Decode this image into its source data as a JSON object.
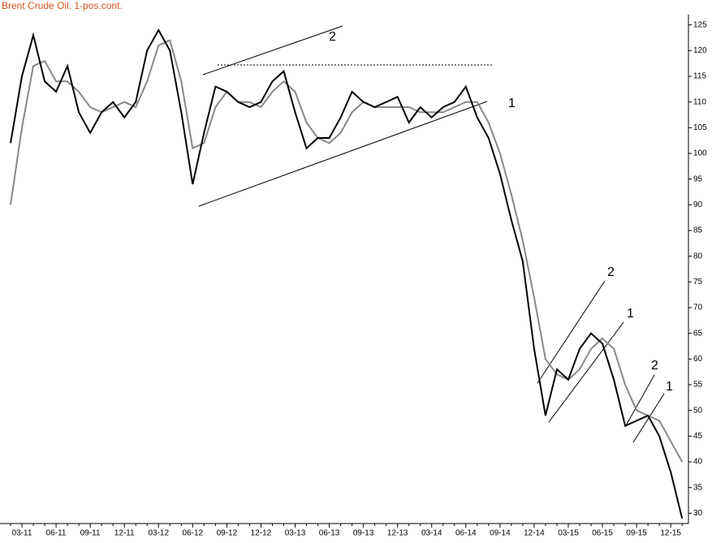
{
  "chart_data": {
    "type": "line",
    "title": "Brent Crude Oil. 1-pos.cont.",
    "categories": [
      null,
      "03-11",
      null,
      null,
      "06-11",
      null,
      null,
      "09-11",
      null,
      null,
      "12-11",
      null,
      null,
      "03-12",
      null,
      null,
      "06-12",
      null,
      null,
      "09-12",
      null,
      null,
      "12-12",
      null,
      null,
      "03-13",
      null,
      null,
      "06-13",
      null,
      null,
      "09-13",
      null,
      null,
      "12-13",
      null,
      null,
      "03-14",
      null,
      null,
      "06-14",
      null,
      null,
      "09-14",
      null,
      null,
      "12-14",
      null,
      null,
      "03-15",
      null,
      null,
      "06-15",
      null,
      null,
      "09-15",
      null,
      null,
      "12-15",
      null
    ],
    "series": [
      {
        "color": "#000000",
        "values": [
          102,
          115,
          123,
          114,
          112,
          117,
          108,
          104,
          108,
          110,
          107,
          110,
          120,
          124,
          120,
          108,
          94,
          104,
          113,
          112,
          110,
          109,
          110,
          114,
          116,
          108,
          101,
          103,
          103,
          107,
          112,
          110,
          109,
          110,
          111,
          106,
          109,
          107,
          109,
          110,
          113,
          107,
          103,
          96,
          87,
          79,
          62,
          49,
          58,
          56,
          62,
          65,
          63,
          56,
          47,
          48,
          49,
          45,
          38,
          29
        ]
      },
      {
        "color": "#888888",
        "values": [
          90,
          105,
          117,
          118,
          114,
          114,
          112,
          109,
          108,
          109,
          110,
          109,
          114,
          121,
          122,
          114,
          101,
          102,
          109,
          112,
          110,
          110,
          109,
          112,
          114,
          112,
          106,
          103,
          102,
          104,
          108,
          110,
          109,
          109,
          109,
          109,
          108,
          108,
          108,
          109,
          110,
          110,
          106,
          100,
          92,
          83,
          72,
          60,
          57,
          56,
          58,
          62,
          64,
          62,
          55,
          50,
          49,
          48,
          44,
          40
        ]
      }
    ],
    "ylim": [
      28,
      127
    ],
    "yticks": [
      30,
      35,
      40,
      45,
      50,
      55,
      60,
      65,
      70,
      75,
      80,
      85,
      90,
      95,
      100,
      105,
      110,
      115,
      120,
      125
    ],
    "annotations": [
      "2",
      "1",
      "2",
      "1",
      "2",
      "1"
    ]
  }
}
